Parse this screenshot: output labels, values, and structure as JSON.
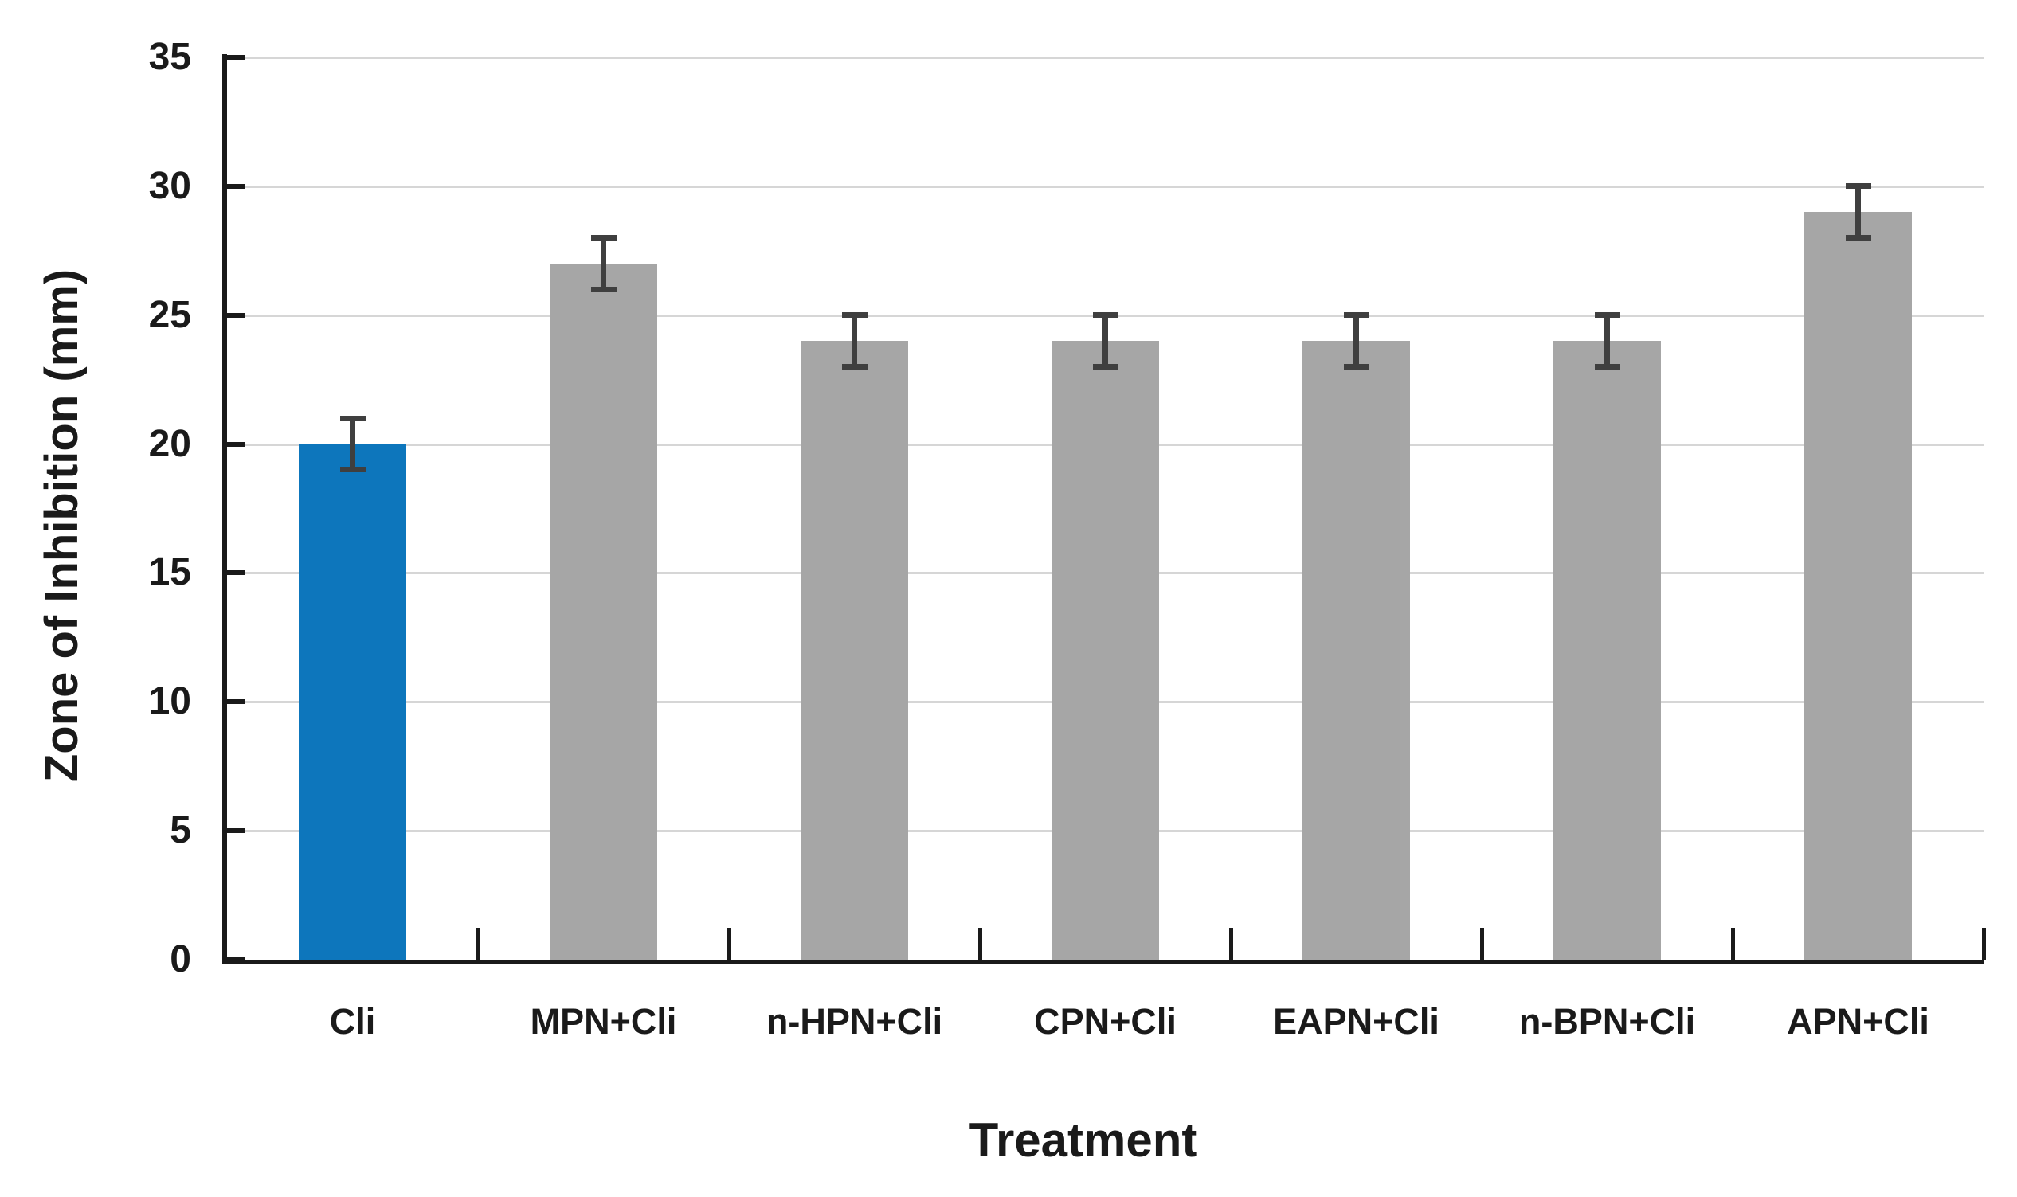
{
  "chart_data": {
    "type": "bar",
    "title": "",
    "xlabel": "Treatment",
    "ylabel": "Zone of Inhibition (mm)",
    "categories": [
      "Cli",
      "MPN+Cli",
      "n-HPN+Cli",
      "CPN+Cli",
      "EAPN+Cli",
      "n-BPN+Cli",
      "APN+Cli"
    ],
    "values": [
      20,
      27,
      24,
      24,
      24,
      24,
      29
    ],
    "errors": [
      1,
      1,
      1,
      1,
      1,
      1,
      1
    ],
    "bar_colors": [
      "#0d76bc",
      "#a6a6a6",
      "#a6a6a6",
      "#a6a6a6",
      "#a6a6a6",
      "#a6a6a6",
      "#a6a6a6"
    ],
    "highlight_color": "#0d76bc",
    "default_color": "#a6a6a6",
    "error_bar_color": "#3f3f3f",
    "gridline_color": "#d6d6d6",
    "axis_color": "#1a1a1a",
    "ylim": [
      0,
      35
    ],
    "yticks": [
      0,
      5,
      10,
      15,
      20,
      25,
      30,
      35
    ],
    "grid": "horizontal",
    "legend": "none",
    "background": "#ffffff"
  }
}
